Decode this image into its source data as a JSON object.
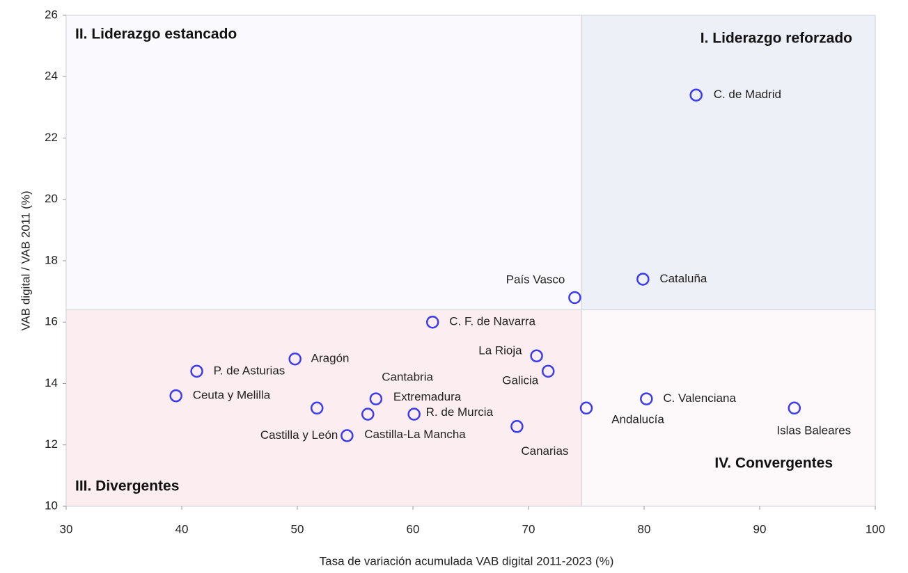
{
  "chart_data": {
    "type": "scatter",
    "xlabel": "Tasa de variación acumulada VAB digital 2011-2023 (%)",
    "ylabel": "VAB digital / VAB 2011 (%)",
    "labels": [
      "C. de Madrid",
      "Cataluña",
      "País Vasco",
      "C. F. de Navarra",
      "La Rioja",
      "Galicia",
      "Aragón",
      "P. de Asturias",
      "Ceuta y Melilla",
      "Cantabria",
      "Castilla-La Mancha",
      "Extremadura",
      "R. de Murcia",
      "Castilla y León",
      "Canarias",
      "Andalucía",
      "C. Valenciana",
      "Islas Baleares"
    ],
    "x": [
      84.5,
      79.9,
      74.0,
      61.7,
      70.7,
      71.7,
      49.8,
      41.3,
      39.5,
      51.7,
      56.1,
      56.8,
      60.1,
      54.3,
      69.0,
      75.0,
      80.2,
      93.0
    ],
    "values": [
      23.4,
      17.4,
      16.8,
      16.0,
      14.9,
      14.4,
      14.8,
      14.4,
      13.6,
      13.2,
      13.0,
      13.5,
      13.0,
      12.3,
      12.6,
      13.2,
      13.5,
      13.2
    ],
    "color": "#3b3bef",
    "quadrant_x": 74.6,
    "quadrant_y": 16.4,
    "quadrants": [
      "I. Liderazgo reforzado",
      "II. Liderazgo estancado",
      "III. Divergentes",
      "IV. Convergentes"
    ],
    "quadrant_colors": [
      "#eef0f8",
      "#fafafe",
      "#fcedf1",
      "#fdf8fa"
    ],
    "xlim": [
      30,
      100
    ],
    "xticks": [
      30,
      40,
      50,
      60,
      70,
      80,
      90,
      100
    ],
    "ylim": [
      10,
      26
    ],
    "yticks": [
      10,
      12,
      14,
      16,
      18,
      20,
      22,
      24,
      26
    ]
  }
}
